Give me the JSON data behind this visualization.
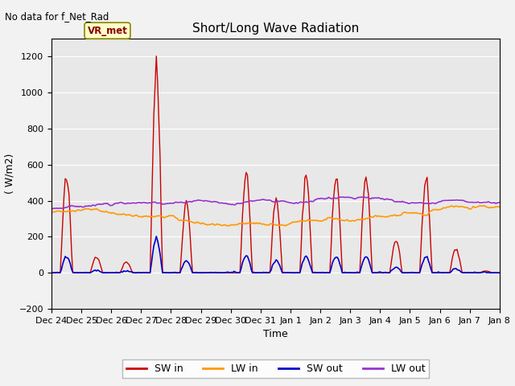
{
  "title": "Short/Long Wave Radiation",
  "top_left_text": "No data for f_Net_Rad",
  "ylabel": "( W/m2)",
  "xlabel": "Time",
  "ylim": [
    -200,
    1300
  ],
  "yticks": [
    -200,
    0,
    200,
    400,
    600,
    800,
    1000,
    1200
  ],
  "xtick_labels": [
    "Dec 24",
    "Dec 25",
    "Dec 26",
    "Dec 27",
    "Dec 28",
    "Dec 29",
    "Dec 30",
    "Dec 31",
    "Jan 1",
    "Jan 2",
    "Jan 3",
    "Jan 4",
    "Jan 5",
    "Jan 6",
    "Jan 7",
    "Jan 8"
  ],
  "annotation_box": "VR_met",
  "legend_entries": [
    "SW in",
    "LW in",
    "SW out",
    "LW out"
  ],
  "sw_in_color": "#cc0000",
  "lw_in_color": "#ff9900",
  "sw_out_color": "#0000cc",
  "lw_out_color": "#9933cc",
  "fig_bg_color": "#f2f2f2",
  "plot_bg_color": "#e8e8e8",
  "grid_color": "#ffffff"
}
